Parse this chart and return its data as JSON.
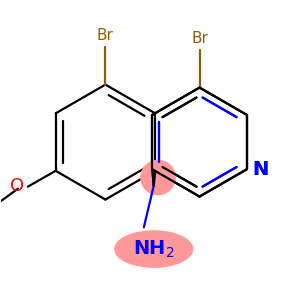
{
  "bg_color": "#ffffff",
  "bond_color": "#000000",
  "br_color": "#8B6000",
  "n_color": "#0000FF",
  "o_color": "#FF0000",
  "nh2_color": "#0000FF",
  "highlight_color": "#FF9999",
  "figsize": [
    3.0,
    3.0
  ],
  "dpi": 100,
  "lw": 1.6,
  "left_br_label": "Br",
  "right_br_label": "Br",
  "n_label": "N",
  "o_label": "O",
  "nh2_label": "NH₂"
}
